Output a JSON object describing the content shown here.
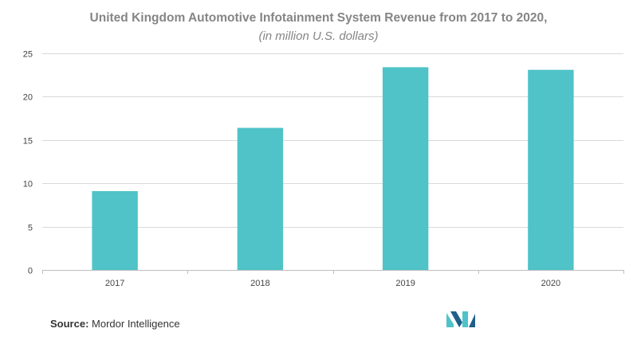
{
  "chart_data": {
    "type": "bar",
    "title": "United Kingdom Automotive Infotainment System Revenue from 2017 to 2020,",
    "subtitle": "(in million U.S. dollars)",
    "categories": [
      "2017",
      "2018",
      "2019",
      "2020"
    ],
    "values": [
      9.1,
      16.4,
      23.4,
      23.1
    ],
    "xlabel": "",
    "ylabel": "",
    "ylim": [
      0,
      25
    ],
    "yticks": [
      0,
      5,
      10,
      15,
      20,
      25
    ],
    "grid": true,
    "bar_color": "#4fc3c7"
  },
  "source": {
    "prefix": "Source:",
    "text": "Mordor Intelligence"
  },
  "logo": {
    "icon": "mordor-intelligence-logo-icon",
    "colors": [
      "#1f5f8b",
      "#4fc3c7"
    ]
  }
}
